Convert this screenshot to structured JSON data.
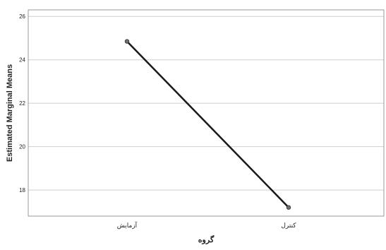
{
  "chart_data": {
    "type": "line",
    "categories": [
      "آزمایش",
      "کنترل"
    ],
    "values": [
      24.85,
      17.2
    ],
    "xlabel": "گروه",
    "ylabel": "Estimated Marginal Means",
    "ylim": [
      16.8,
      26.3
    ],
    "yticks": [
      18,
      20,
      22,
      24,
      26
    ],
    "grid": true,
    "colors": {
      "line": "#1a1a1a",
      "marker": "#6e6e6e",
      "grid": "#cfcfcf",
      "axis": "#9a9a9a"
    }
  }
}
